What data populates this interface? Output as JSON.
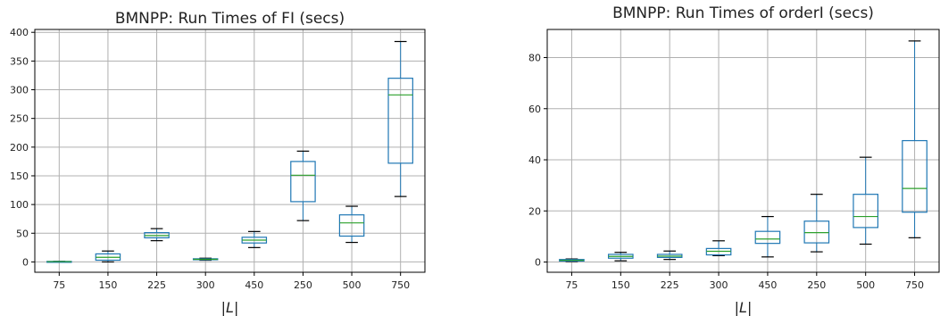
{
  "chart_data": [
    {
      "type": "box",
      "title": "BMNPP: Run Times of FI (secs)",
      "xlabel": "|L|",
      "ylabel": "",
      "categories": [
        "75",
        "150",
        "225",
        "300",
        "450",
        "250",
        "500",
        "750"
      ],
      "yticks": [
        "0",
        "50",
        "100",
        "150",
        "200",
        "250",
        "300",
        "350",
        "400"
      ],
      "ylim": [
        -18,
        405
      ],
      "grid": true,
      "boxes": [
        {
          "whislo": 0.2,
          "q1": 0.4,
          "med": 0.6,
          "q3": 0.9,
          "whishi": 1.0
        },
        {
          "whislo": 0,
          "q1": 3,
          "med": 8,
          "q3": 14,
          "whishi": 19
        },
        {
          "whislo": 37,
          "q1": 42,
          "med": 46,
          "q3": 51,
          "whishi": 58
        },
        {
          "whislo": 3,
          "q1": 3.8,
          "med": 4.5,
          "q3": 5.5,
          "whishi": 6.5
        },
        {
          "whislo": 25,
          "q1": 33,
          "med": 38,
          "q3": 43,
          "whishi": 53
        },
        {
          "whislo": 72,
          "q1": 105,
          "med": 151,
          "q3": 175,
          "whishi": 193
        },
        {
          "whislo": 34,
          "q1": 45,
          "med": 68,
          "q3": 82,
          "whishi": 97
        },
        {
          "whislo": 114,
          "q1": 172,
          "med": 291,
          "q3": 320,
          "whishi": 384
        }
      ],
      "colors": {
        "box": "#1f77b4",
        "median": "#2ca02c",
        "whisker": "#000000"
      }
    },
    {
      "type": "box",
      "title": "BMNPP: Run Times of orderI (secs)",
      "xlabel": "|L|",
      "ylabel": "",
      "categories": [
        "75",
        "150",
        "225",
        "300",
        "450",
        "250",
        "500",
        "750"
      ],
      "yticks": [
        "0",
        "20",
        "40",
        "60",
        "80"
      ],
      "ylim": [
        -4,
        91
      ],
      "grid": true,
      "boxes": [
        {
          "whislo": 0.2,
          "q1": 0.4,
          "med": 0.7,
          "q3": 1.0,
          "whishi": 1.2
        },
        {
          "whislo": 0.5,
          "q1": 1.5,
          "med": 2.2,
          "q3": 3.0,
          "whishi": 3.8
        },
        {
          "whislo": 1.0,
          "q1": 1.8,
          "med": 2.3,
          "q3": 3.0,
          "whishi": 4.3
        },
        {
          "whislo": 2.5,
          "q1": 2.8,
          "med": 4.2,
          "q3": 5.3,
          "whishi": 8.3
        },
        {
          "whislo": 2.0,
          "q1": 7.3,
          "med": 9.0,
          "q3": 12.0,
          "whishi": 17.8
        },
        {
          "whislo": 4.0,
          "q1": 7.5,
          "med": 11.5,
          "q3": 16.0,
          "whishi": 26.5
        },
        {
          "whislo": 7.0,
          "q1": 13.5,
          "med": 17.8,
          "q3": 26.5,
          "whishi": 41.0
        },
        {
          "whislo": 9.5,
          "q1": 19.5,
          "med": 28.8,
          "q3": 47.5,
          "whishi": 86.5
        }
      ],
      "colors": {
        "box": "#1f77b4",
        "median": "#2ca02c",
        "whisker": "#000000"
      }
    }
  ]
}
